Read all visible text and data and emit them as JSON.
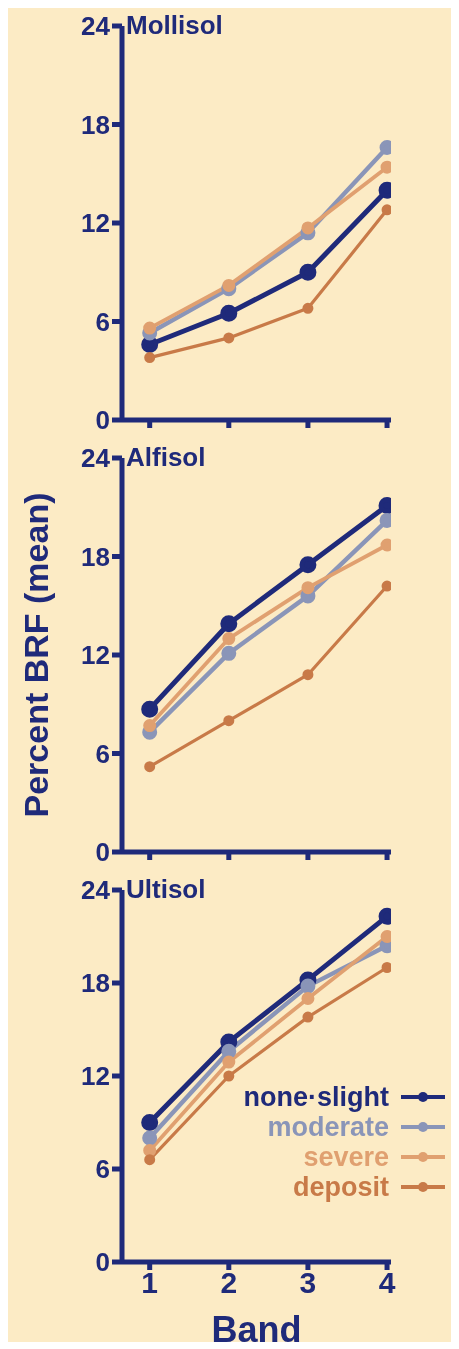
{
  "chart_data": [
    {
      "type": "line",
      "title": "Mollisol",
      "categories": [
        "1",
        "2",
        "3",
        "4"
      ],
      "ylim": [
        0,
        24
      ],
      "yticks": [
        0,
        6,
        12,
        18,
        24
      ],
      "grid": false,
      "marker": "circle",
      "legend": false,
      "tick_labels": "y",
      "series": [
        {
          "color": "#1f2a7a",
          "values": [
            4.6,
            6.5,
            9.0,
            14.0
          ]
        },
        {
          "color": "#8a95b8",
          "values": [
            5.3,
            8.0,
            11.4,
            16.6
          ]
        },
        {
          "color": "#e0a070",
          "values": [
            5.6,
            8.2,
            11.7,
            15.4
          ]
        },
        {
          "color": "#c87a48",
          "values": [
            3.8,
            5.0,
            6.8,
            12.8
          ]
        }
      ]
    },
    {
      "type": "line",
      "title": "Alfisol",
      "ylabel": "Percent BRF (mean)",
      "categories": [
        "1",
        "2",
        "3",
        "4"
      ],
      "ylim": [
        0,
        24
      ],
      "yticks": [
        0,
        6,
        12,
        18,
        24
      ],
      "grid": false,
      "marker": "circle",
      "legend": false,
      "tick_labels": "y",
      "series": [
        {
          "color": "#1f2a7a",
          "values": [
            8.7,
            13.9,
            17.5,
            21.1
          ]
        },
        {
          "color": "#8a95b8",
          "values": [
            7.3,
            12.1,
            15.6,
            20.2
          ]
        },
        {
          "color": "#e0a070",
          "values": [
            7.7,
            13.0,
            16.1,
            18.7
          ]
        },
        {
          "color": "#c87a48",
          "values": [
            5.2,
            8.0,
            10.8,
            16.2
          ]
        }
      ]
    },
    {
      "type": "line",
      "title": "Ultisol",
      "xlabel": "Band",
      "categories": [
        "1",
        "2",
        "3",
        "4"
      ],
      "ylim": [
        0,
        24
      ],
      "yticks": [
        0,
        6,
        12,
        18,
        24
      ],
      "grid": false,
      "marker": "circle",
      "legend": "bottom right",
      "series": [
        {
          "name": "none·slight",
          "color": "#1f2a7a",
          "values": [
            9.0,
            14.2,
            18.2,
            22.3
          ]
        },
        {
          "name": "moderate",
          "color": "#8a95b8",
          "values": [
            8.0,
            13.6,
            17.8,
            20.4
          ]
        },
        {
          "name": "severe",
          "color": "#e0a070",
          "values": [
            7.2,
            12.9,
            17.0,
            21.0
          ]
        },
        {
          "name": "deposit",
          "color": "#c87a48",
          "values": [
            6.6,
            12.0,
            15.8,
            19.0
          ]
        }
      ]
    }
  ]
}
